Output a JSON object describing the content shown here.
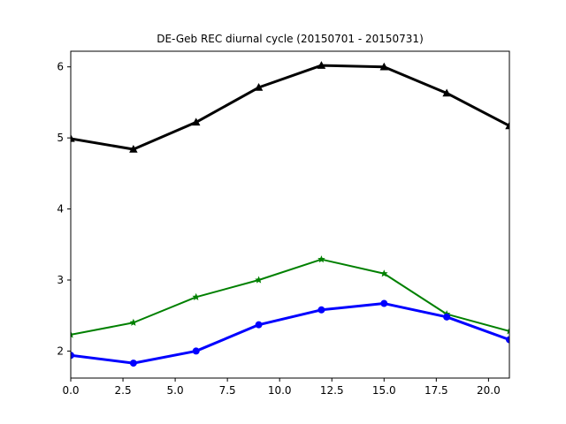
{
  "chart_data": {
    "type": "line",
    "title": "DE-Geb REC diurnal cycle (20150701 - 20150731)",
    "xlabel": "",
    "ylabel": "",
    "xlim": [
      0,
      21
    ],
    "ylim": [
      1.62,
      6.22
    ],
    "x_ticks": [
      "0.0",
      "2.5",
      "5.0",
      "7.5",
      "10.0",
      "12.5",
      "15.0",
      "17.5",
      "20.0"
    ],
    "y_ticks": [
      "2",
      "3",
      "4",
      "5",
      "6"
    ],
    "grid": false,
    "x": [
      0,
      3,
      6,
      9,
      12,
      15,
      18,
      21
    ],
    "series": [
      {
        "color": "#000000",
        "marker": "triangle",
        "values": [
          4.99,
          4.84,
          5.22,
          5.71,
          6.02,
          6.0,
          5.63,
          5.17
        ]
      },
      {
        "color": "#008000",
        "marker": "star",
        "values": [
          2.23,
          2.4,
          2.76,
          3.0,
          3.29,
          3.09,
          2.52,
          2.28
        ]
      },
      {
        "color": "#0000ff",
        "marker": "circle",
        "values": [
          1.94,
          1.83,
          2.0,
          2.37,
          2.58,
          2.67,
          2.48,
          2.16
        ]
      }
    ]
  }
}
